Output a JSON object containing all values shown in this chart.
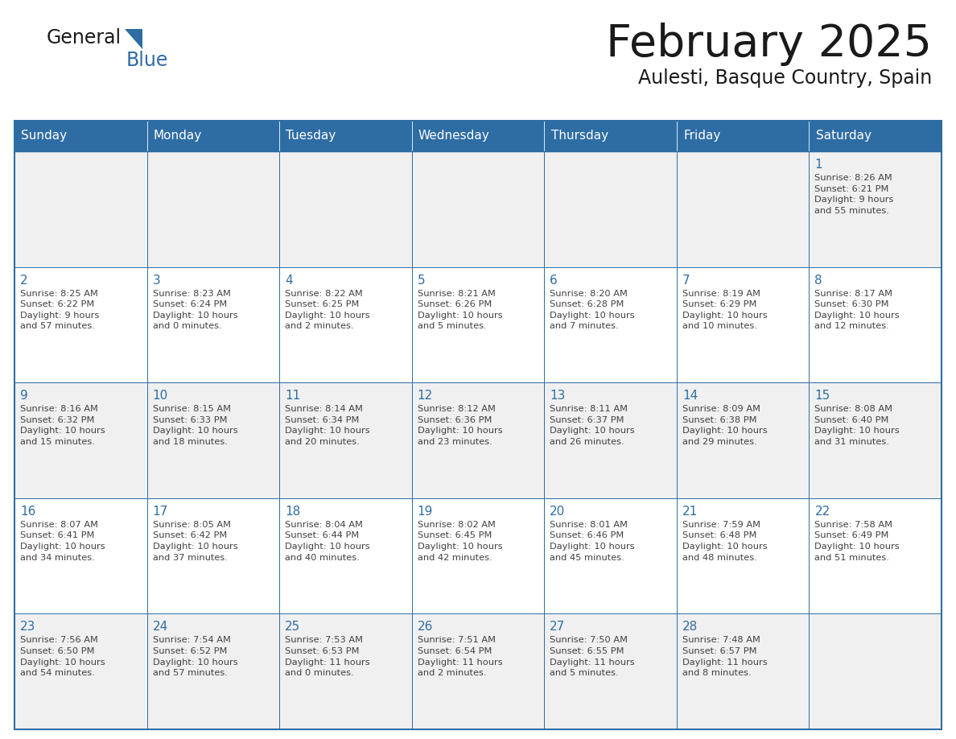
{
  "title": "February 2025",
  "subtitle": "Aulesti, Basque Country, Spain",
  "days_of_week": [
    "Sunday",
    "Monday",
    "Tuesday",
    "Wednesday",
    "Thursday",
    "Friday",
    "Saturday"
  ],
  "header_bg": "#2E6DA4",
  "header_text": "#FFFFFF",
  "cell_bg_light": "#F0F0F0",
  "cell_bg_white": "#FFFFFF",
  "border_color": "#2E6DA4",
  "day_number_color": "#2E6DA4",
  "info_text_color": "#404040",
  "title_color": "#1a1a1a",
  "subtitle_color": "#1a1a1a",
  "calendar_data": [
    [
      {
        "day": null,
        "info": ""
      },
      {
        "day": null,
        "info": ""
      },
      {
        "day": null,
        "info": ""
      },
      {
        "day": null,
        "info": ""
      },
      {
        "day": null,
        "info": ""
      },
      {
        "day": null,
        "info": ""
      },
      {
        "day": 1,
        "info": "Sunrise: 8:26 AM\nSunset: 6:21 PM\nDaylight: 9 hours\nand 55 minutes."
      }
    ],
    [
      {
        "day": 2,
        "info": "Sunrise: 8:25 AM\nSunset: 6:22 PM\nDaylight: 9 hours\nand 57 minutes."
      },
      {
        "day": 3,
        "info": "Sunrise: 8:23 AM\nSunset: 6:24 PM\nDaylight: 10 hours\nand 0 minutes."
      },
      {
        "day": 4,
        "info": "Sunrise: 8:22 AM\nSunset: 6:25 PM\nDaylight: 10 hours\nand 2 minutes."
      },
      {
        "day": 5,
        "info": "Sunrise: 8:21 AM\nSunset: 6:26 PM\nDaylight: 10 hours\nand 5 minutes."
      },
      {
        "day": 6,
        "info": "Sunrise: 8:20 AM\nSunset: 6:28 PM\nDaylight: 10 hours\nand 7 minutes."
      },
      {
        "day": 7,
        "info": "Sunrise: 8:19 AM\nSunset: 6:29 PM\nDaylight: 10 hours\nand 10 minutes."
      },
      {
        "day": 8,
        "info": "Sunrise: 8:17 AM\nSunset: 6:30 PM\nDaylight: 10 hours\nand 12 minutes."
      }
    ],
    [
      {
        "day": 9,
        "info": "Sunrise: 8:16 AM\nSunset: 6:32 PM\nDaylight: 10 hours\nand 15 minutes."
      },
      {
        "day": 10,
        "info": "Sunrise: 8:15 AM\nSunset: 6:33 PM\nDaylight: 10 hours\nand 18 minutes."
      },
      {
        "day": 11,
        "info": "Sunrise: 8:14 AM\nSunset: 6:34 PM\nDaylight: 10 hours\nand 20 minutes."
      },
      {
        "day": 12,
        "info": "Sunrise: 8:12 AM\nSunset: 6:36 PM\nDaylight: 10 hours\nand 23 minutes."
      },
      {
        "day": 13,
        "info": "Sunrise: 8:11 AM\nSunset: 6:37 PM\nDaylight: 10 hours\nand 26 minutes."
      },
      {
        "day": 14,
        "info": "Sunrise: 8:09 AM\nSunset: 6:38 PM\nDaylight: 10 hours\nand 29 minutes."
      },
      {
        "day": 15,
        "info": "Sunrise: 8:08 AM\nSunset: 6:40 PM\nDaylight: 10 hours\nand 31 minutes."
      }
    ],
    [
      {
        "day": 16,
        "info": "Sunrise: 8:07 AM\nSunset: 6:41 PM\nDaylight: 10 hours\nand 34 minutes."
      },
      {
        "day": 17,
        "info": "Sunrise: 8:05 AM\nSunset: 6:42 PM\nDaylight: 10 hours\nand 37 minutes."
      },
      {
        "day": 18,
        "info": "Sunrise: 8:04 AM\nSunset: 6:44 PM\nDaylight: 10 hours\nand 40 minutes."
      },
      {
        "day": 19,
        "info": "Sunrise: 8:02 AM\nSunset: 6:45 PM\nDaylight: 10 hours\nand 42 minutes."
      },
      {
        "day": 20,
        "info": "Sunrise: 8:01 AM\nSunset: 6:46 PM\nDaylight: 10 hours\nand 45 minutes."
      },
      {
        "day": 21,
        "info": "Sunrise: 7:59 AM\nSunset: 6:48 PM\nDaylight: 10 hours\nand 48 minutes."
      },
      {
        "day": 22,
        "info": "Sunrise: 7:58 AM\nSunset: 6:49 PM\nDaylight: 10 hours\nand 51 minutes."
      }
    ],
    [
      {
        "day": 23,
        "info": "Sunrise: 7:56 AM\nSunset: 6:50 PM\nDaylight: 10 hours\nand 54 minutes."
      },
      {
        "day": 24,
        "info": "Sunrise: 7:54 AM\nSunset: 6:52 PM\nDaylight: 10 hours\nand 57 minutes."
      },
      {
        "day": 25,
        "info": "Sunrise: 7:53 AM\nSunset: 6:53 PM\nDaylight: 11 hours\nand 0 minutes."
      },
      {
        "day": 26,
        "info": "Sunrise: 7:51 AM\nSunset: 6:54 PM\nDaylight: 11 hours\nand 2 minutes."
      },
      {
        "day": 27,
        "info": "Sunrise: 7:50 AM\nSunset: 6:55 PM\nDaylight: 11 hours\nand 5 minutes."
      },
      {
        "day": 28,
        "info": "Sunrise: 7:48 AM\nSunset: 6:57 PM\nDaylight: 11 hours\nand 8 minutes."
      },
      {
        "day": null,
        "info": ""
      }
    ]
  ],
  "logo_bg_color": "#FFFFFF",
  "fig_width": 11.88,
  "fig_height": 9.18,
  "dpi": 100
}
